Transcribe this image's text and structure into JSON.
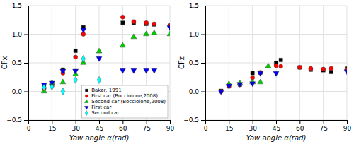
{
  "chart_data": [
    {
      "type": "scatter",
      "xlabel": "Yaw angle α(rad)",
      "ylabel": "CFx",
      "xlim": [
        0,
        90
      ],
      "ylim": [
        -0.5,
        1.5
      ],
      "xticks": [
        0,
        15,
        30,
        45,
        60,
        75,
        90
      ],
      "yticks": [
        {
          "value": -0.5,
          "label": "−0.5"
        },
        {
          "value": 0,
          "label": "0.0"
        },
        0.5,
        {
          "value": 1,
          "label": "1.0"
        },
        {
          "value": 1.5,
          "label": "1.5"
        }
      ],
      "grid": true,
      "legend": "lower right",
      "series": [
        {
          "name": "Baker, 1991",
          "color": "black",
          "marker": "square",
          "x": [
            10,
            15,
            22,
            30,
            35,
            60,
            67,
            75,
            80,
            90
          ],
          "values": [
            0.09,
            0.13,
            0.38,
            0.71,
            1.12,
            1.2,
            1.2,
            1.18,
            1.17,
            1.15
          ]
        },
        {
          "name": "First car (Bocciolone,2008)",
          "color": "#ff0000",
          "marker": "circle",
          "x": [
            10,
            15,
            22,
            30,
            35,
            60,
            67,
            75,
            80,
            90
          ],
          "values": [
            0.05,
            0.1,
            0.32,
            0.6,
            1.0,
            1.3,
            1.22,
            1.2,
            1.18,
            1.15
          ]
        },
        {
          "name": "Second car (Bocciolone,2008)",
          "color": "#00cc00",
          "marker": "triangle-up",
          "x": [
            10,
            15,
            22,
            30,
            35,
            45,
            60,
            67,
            75,
            80,
            90
          ],
          "values": [
            0.0,
            0.15,
            0.16,
            0.3,
            0.5,
            0.7,
            0.8,
            0.95,
            1.0,
            1.02,
            1.0
          ]
        },
        {
          "name": "First car",
          "color": "#0000ee",
          "marker": "triangle-down",
          "x": [
            10,
            15,
            22,
            30,
            35,
            45,
            60,
            67,
            75,
            80,
            90
          ],
          "values": [
            0.12,
            0.15,
            0.36,
            0.36,
            1.08,
            0.58,
            0.37,
            0.37,
            0.37,
            0.37,
            1.12
          ]
        },
        {
          "name": "Second car",
          "color": "cyan",
          "marker": "diamond",
          "x": [
            10,
            15,
            22,
            30,
            35,
            45
          ],
          "values": [
            0.07,
            0.08,
            0.0,
            0.2,
            0.57,
            0.2
          ]
        }
      ]
    },
    {
      "type": "scatter",
      "xlabel": "Yaw angle α(rad)",
      "ylabel": "CFz",
      "xlim": [
        0,
        90
      ],
      "ylim": [
        -0.5,
        1.5
      ],
      "xticks": [
        0,
        15,
        30,
        45,
        60,
        75,
        90
      ],
      "yticks": [
        {
          "value": -0.5,
          "label": "−0.5"
        },
        {
          "value": 0,
          "label": "0.0"
        },
        0.5,
        {
          "value": 1,
          "label": "1.0"
        },
        {
          "value": 1.5,
          "label": "1.5"
        }
      ],
      "grid": true,
      "series": [
        {
          "color": "black",
          "marker": "square",
          "x": [
            10,
            15,
            22,
            30,
            35,
            45,
            48,
            60,
            67,
            75,
            80,
            90
          ],
          "values": [
            0.01,
            0.09,
            0.12,
            0.32,
            0.33,
            0.5,
            0.55,
            0.42,
            0.38,
            0.37,
            0.34,
            0.4
          ]
        },
        {
          "color": "#ff0000",
          "marker": "circle",
          "x": [
            10,
            15,
            22,
            30,
            35,
            45,
            48,
            60,
            67,
            75,
            80,
            90
          ],
          "values": [
            0.0,
            0.09,
            0.12,
            0.24,
            0.33,
            0.45,
            0.44,
            0.42,
            0.4,
            0.39,
            0.4,
            0.38
          ]
        },
        {
          "color": "#00cc00",
          "marker": "triangle-up",
          "x": [
            15,
            22,
            30,
            35,
            40
          ],
          "values": [
            0.13,
            0.14,
            0.16,
            0.16,
            0.44
          ]
        },
        {
          "color": "#0000ee",
          "marker": "triangle-down",
          "x": [
            10,
            15,
            22,
            30,
            35,
            45,
            90
          ],
          "values": [
            0.0,
            0.1,
            0.13,
            0.14,
            0.32,
            0.32,
            0.35
          ]
        }
      ]
    }
  ]
}
